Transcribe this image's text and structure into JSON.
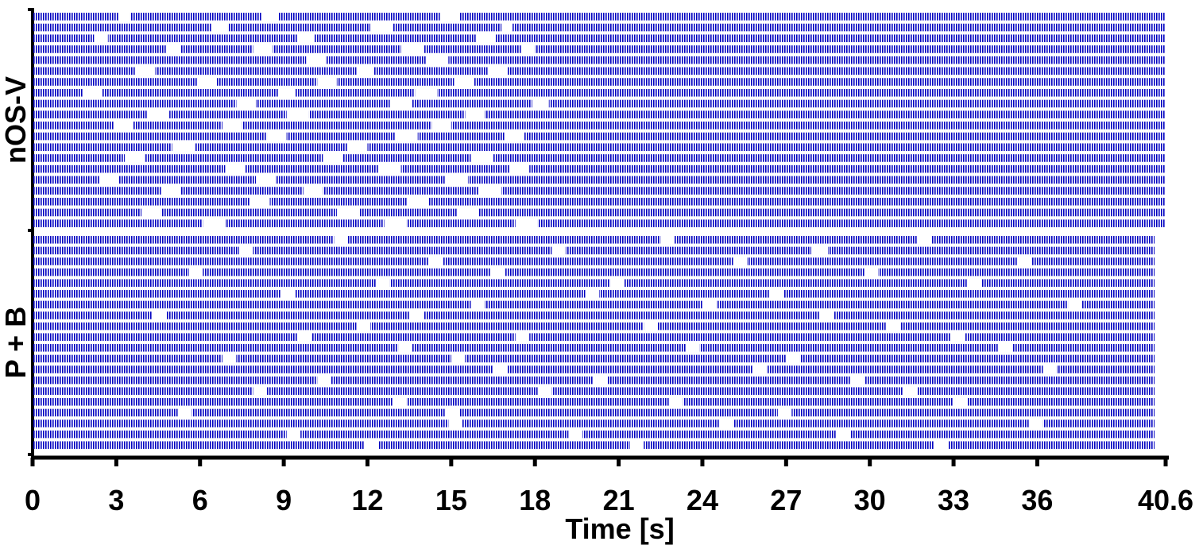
{
  "chart_data": {
    "type": "raster",
    "xlabel": "Time [s]",
    "xlim": [
      0,
      40.6
    ],
    "xticks": [
      0,
      3,
      6,
      9,
      12,
      15,
      18,
      21,
      24,
      27,
      30,
      33,
      36,
      40.6
    ],
    "groups": [
      {
        "name": "nOS-V",
        "color": "#0000c0",
        "rows": [
          [
            [
              0,
              3.1
            ],
            [
              3.5,
              8.2
            ],
            [
              8.8,
              14.6
            ],
            [
              15.3,
              40.6
            ]
          ],
          [
            [
              0,
              6.4
            ],
            [
              7.0,
              12.1
            ],
            [
              12.9,
              16.8
            ],
            [
              17.2,
              40.6
            ]
          ],
          [
            [
              0,
              2.2
            ],
            [
              2.7,
              9.5
            ],
            [
              10.1,
              15.9
            ],
            [
              16.6,
              40.6
            ]
          ],
          [
            [
              0,
              4.8
            ],
            [
              5.3,
              7.9
            ],
            [
              8.6,
              13.2
            ],
            [
              14.0,
              17.5
            ],
            [
              18.0,
              40.6
            ]
          ],
          [
            [
              0,
              9.8
            ],
            [
              10.5,
              14.1
            ],
            [
              14.9,
              40.6
            ]
          ],
          [
            [
              0,
              3.7
            ],
            [
              4.4,
              11.6
            ],
            [
              12.2,
              16.3
            ],
            [
              17.0,
              40.6
            ]
          ],
          [
            [
              0,
              5.9
            ],
            [
              6.6,
              10.2
            ],
            [
              10.9,
              15.1
            ],
            [
              15.8,
              40.6
            ]
          ],
          [
            [
              0,
              1.8
            ],
            [
              2.5,
              8.8
            ],
            [
              9.4,
              13.7
            ],
            [
              14.5,
              40.6
            ]
          ],
          [
            [
              0,
              7.3
            ],
            [
              8.0,
              12.8
            ],
            [
              13.6,
              17.9
            ],
            [
              18.5,
              40.6
            ]
          ],
          [
            [
              0,
              4.1
            ],
            [
              4.9,
              9.1
            ],
            [
              9.9,
              15.5
            ],
            [
              16.2,
              40.6
            ]
          ],
          [
            [
              0,
              2.9
            ],
            [
              3.6,
              6.8
            ],
            [
              7.5,
              14.3
            ],
            [
              15.0,
              40.6
            ]
          ],
          [
            [
              0,
              8.4
            ],
            [
              9.1,
              13.0
            ],
            [
              13.8,
              16.9
            ],
            [
              17.6,
              40.6
            ]
          ],
          [
            [
              0,
              5.0
            ],
            [
              5.8,
              11.3
            ],
            [
              12.0,
              40.6
            ]
          ],
          [
            [
              0,
              3.3
            ],
            [
              4.0,
              10.4
            ],
            [
              11.1,
              15.7
            ],
            [
              16.5,
              40.6
            ]
          ],
          [
            [
              0,
              6.9
            ],
            [
              7.6,
              12.4
            ],
            [
              13.2,
              17.1
            ],
            [
              17.8,
              40.6
            ]
          ],
          [
            [
              0,
              2.4
            ],
            [
              3.1,
              8.0
            ],
            [
              8.7,
              14.8
            ],
            [
              15.6,
              40.6
            ]
          ],
          [
            [
              0,
              4.6
            ],
            [
              5.3,
              9.7
            ],
            [
              10.4,
              16.0
            ],
            [
              16.8,
              40.6
            ]
          ],
          [
            [
              0,
              7.8
            ],
            [
              8.5,
              13.4
            ],
            [
              14.2,
              40.6
            ]
          ],
          [
            [
              0,
              3.9
            ],
            [
              4.6,
              10.9
            ],
            [
              11.7,
              15.2
            ],
            [
              16.0,
              40.6
            ]
          ],
          [
            [
              0,
              6.1
            ],
            [
              6.9,
              12.6
            ],
            [
              13.4,
              17.3
            ],
            [
              18.1,
              40.6
            ]
          ]
        ]
      },
      {
        "name": "P + B",
        "color": "#0000c0",
        "rows": [
          [
            [
              0,
              10.8
            ],
            [
              11.3,
              22.5
            ],
            [
              23.0,
              31.7
            ],
            [
              32.2,
              40.2
            ]
          ],
          [
            [
              0,
              7.4
            ],
            [
              7.9,
              18.6
            ],
            [
              19.1,
              27.9
            ],
            [
              28.5,
              40.2
            ]
          ],
          [
            [
              0,
              14.2
            ],
            [
              14.7,
              25.1
            ],
            [
              25.6,
              35.3
            ],
            [
              35.8,
              40.2
            ]
          ],
          [
            [
              0,
              5.6
            ],
            [
              6.1,
              16.4
            ],
            [
              16.9,
              29.8
            ],
            [
              30.3,
              40.2
            ]
          ],
          [
            [
              0,
              12.3
            ],
            [
              12.8,
              20.7
            ],
            [
              21.2,
              33.5
            ],
            [
              34.0,
              40.2
            ]
          ],
          [
            [
              0,
              8.9
            ],
            [
              9.4,
              19.8
            ],
            [
              20.3,
              26.4
            ],
            [
              26.9,
              40.2
            ]
          ],
          [
            [
              0,
              15.7
            ],
            [
              16.2,
              24.0
            ],
            [
              24.5,
              37.1
            ],
            [
              37.6,
              40.2
            ]
          ],
          [
            [
              0,
              4.3
            ],
            [
              4.8,
              13.5
            ],
            [
              14.0,
              28.2
            ],
            [
              28.7,
              40.2
            ]
          ],
          [
            [
              0,
              11.6
            ],
            [
              12.1,
              21.9
            ],
            [
              22.4,
              30.6
            ],
            [
              31.1,
              40.2
            ]
          ],
          [
            [
              0,
              9.5
            ],
            [
              10.0,
              17.3
            ],
            [
              17.8,
              32.9
            ],
            [
              33.4,
              40.2
            ]
          ],
          [
            [
              0,
              13.1
            ],
            [
              13.6,
              23.4
            ],
            [
              23.9,
              34.6
            ],
            [
              35.1,
              40.2
            ]
          ],
          [
            [
              0,
              6.8
            ],
            [
              7.3,
              15.0
            ],
            [
              15.5,
              27.0
            ],
            [
              27.5,
              40.2
            ]
          ],
          [
            [
              0,
              16.5
            ],
            [
              17.0,
              25.8
            ],
            [
              26.3,
              36.2
            ],
            [
              36.7,
              40.2
            ]
          ],
          [
            [
              0,
              10.2
            ],
            [
              10.7,
              20.1
            ],
            [
              20.6,
              29.3
            ],
            [
              29.8,
              40.2
            ]
          ],
          [
            [
              0,
              7.9
            ],
            [
              8.4,
              18.1
            ],
            [
              18.6,
              31.2
            ],
            [
              31.7,
              40.2
            ]
          ],
          [
            [
              0,
              12.9
            ],
            [
              13.4,
              22.8
            ],
            [
              23.3,
              33.0
            ],
            [
              33.5,
              40.2
            ]
          ],
          [
            [
              0,
              5.2
            ],
            [
              5.7,
              14.8
            ],
            [
              15.3,
              26.7
            ],
            [
              27.2,
              40.2
            ]
          ],
          [
            [
              0,
              14.9
            ],
            [
              15.4,
              24.6
            ],
            [
              25.1,
              35.7
            ],
            [
              36.2,
              40.2
            ]
          ],
          [
            [
              0,
              9.1
            ],
            [
              9.6,
              19.2
            ],
            [
              19.7,
              28.8
            ],
            [
              29.3,
              40.2
            ]
          ],
          [
            [
              0,
              11.9
            ],
            [
              12.4,
              21.4
            ],
            [
              21.9,
              32.3
            ],
            [
              32.8,
              40.2
            ]
          ]
        ]
      }
    ]
  }
}
